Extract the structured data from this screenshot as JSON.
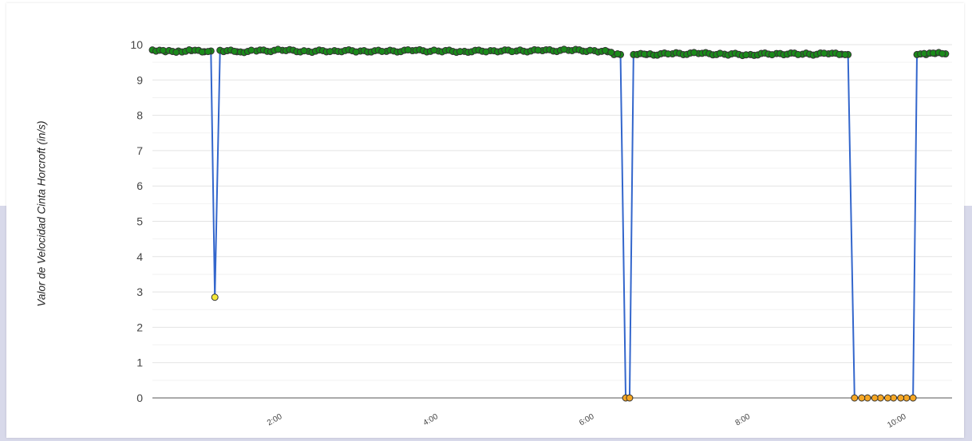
{
  "colors": {
    "line": "#3366cc",
    "ok_point": "#1a8a1a",
    "low_point": "#f4e83a",
    "zero_point": "#f5a623",
    "grid_major": "#e3e3e3",
    "grid_minor": "#f2f2f2",
    "axis": "#555555",
    "background_band": "#d8d9ea"
  },
  "chart_data": {
    "type": "line",
    "title": "",
    "xlabel": "",
    "ylabel": "Valor de Velocidad Cinta Horcroft (in/s)",
    "xlim": [
      "0:20",
      "10:35"
    ],
    "ylim": [
      0,
      10
    ],
    "y_ticks": [
      "0",
      "1",
      "2",
      "3",
      "4",
      "5",
      "6",
      "7",
      "8",
      "9",
      "10"
    ],
    "x_ticks": [
      "2:00",
      "4:00",
      "6:00",
      "8:00",
      "10:00"
    ],
    "grid": true,
    "legend": "none",
    "series": [
      {
        "points": [
          [
            "0:20",
            9.85
          ],
          [
            "0:30",
            9.8
          ],
          [
            "0:40",
            9.82
          ],
          [
            "0:50",
            9.83
          ],
          [
            "1:00",
            9.8
          ],
          [
            "1:05",
            9.82
          ],
          [
            "1:08",
            2.85
          ],
          [
            "1:12",
            9.84
          ],
          [
            "1:25",
            9.8
          ],
          [
            "1:40",
            9.82
          ],
          [
            "2:00",
            9.84
          ],
          [
            "2:20",
            9.81
          ],
          [
            "2:40",
            9.83
          ],
          [
            "3:00",
            9.82
          ],
          [
            "3:20",
            9.81
          ],
          [
            "3:40",
            9.83
          ],
          [
            "4:00",
            9.82
          ],
          [
            "4:20",
            9.81
          ],
          [
            "4:40",
            9.83
          ],
          [
            "5:00",
            9.82
          ],
          [
            "5:20",
            9.83
          ],
          [
            "5:40",
            9.84
          ],
          [
            "6:00",
            9.83
          ],
          [
            "6:10",
            9.8
          ],
          [
            "6:15",
            9.72
          ],
          [
            "6:20",
            9.72
          ],
          [
            "6:24",
            0.0
          ],
          [
            "6:27",
            0.0
          ],
          [
            "6:30",
            9.72
          ],
          [
            "6:40",
            9.72
          ],
          [
            "7:00",
            9.74
          ],
          [
            "7:20",
            9.75
          ],
          [
            "7:40",
            9.73
          ],
          [
            "8:00",
            9.72
          ],
          [
            "8:20",
            9.75
          ],
          [
            "8:40",
            9.73
          ],
          [
            "9:00",
            9.74
          ],
          [
            "9:10",
            9.73
          ],
          [
            "9:15",
            9.72
          ],
          [
            "9:20",
            0.0
          ],
          [
            "9:30",
            0.0
          ],
          [
            "9:40",
            0.0
          ],
          [
            "9:50",
            0.0
          ],
          [
            "10:00",
            0.0
          ],
          [
            "10:05",
            0.0
          ],
          [
            "10:08",
            9.72
          ],
          [
            "10:15",
            9.72
          ],
          [
            "10:22",
            9.75
          ],
          [
            "10:30",
            9.74
          ]
        ]
      }
    ]
  }
}
